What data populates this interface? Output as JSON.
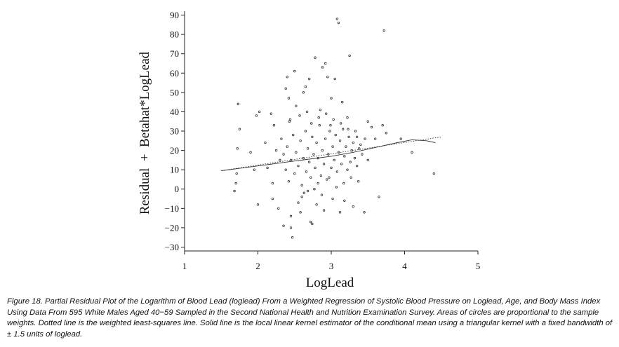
{
  "chart_data": {
    "type": "scatter",
    "xlabel": "LogLead",
    "ylabel": "Residual  +  Betahat*LogLead",
    "xlim": [
      1,
      5
    ],
    "ylim": [
      -32,
      92
    ],
    "xticks": [
      "1",
      "2",
      "3",
      "4",
      "5"
    ],
    "yticks": [
      "−30",
      "−20",
      "−10",
      "0",
      "10",
      "20",
      "30",
      "40",
      "50",
      "60",
      "70",
      "80",
      "90"
    ],
    "series": [
      {
        "kind": "points",
        "marker": "open-circle",
        "points": [
          [
            1.73,
            44
          ],
          [
            1.75,
            31
          ],
          [
            1.72,
            21
          ],
          [
            1.71,
            8
          ],
          [
            1.7,
            3
          ],
          [
            1.68,
            -1
          ],
          [
            1.9,
            19
          ],
          [
            1.98,
            38
          ],
          [
            2.02,
            40
          ],
          [
            1.95,
            10
          ],
          [
            2.0,
            -8
          ],
          [
            2.1,
            24
          ],
          [
            2.13,
            11
          ],
          [
            2.18,
            39
          ],
          [
            2.22,
            33
          ],
          [
            2.25,
            20
          ],
          [
            2.2,
            3
          ],
          [
            2.2,
            -5
          ],
          [
            2.28,
            -10
          ],
          [
            2.3,
            15
          ],
          [
            2.32,
            26
          ],
          [
            2.35,
            -19
          ],
          [
            2.38,
            52
          ],
          [
            2.4,
            58
          ],
          [
            2.42,
            47
          ],
          [
            2.44,
            36
          ],
          [
            2.45,
            -14
          ],
          [
            2.45,
            -20
          ],
          [
            2.47,
            -25
          ],
          [
            2.5,
            61
          ],
          [
            2.52,
            43
          ],
          [
            2.55,
            -7
          ],
          [
            2.58,
            -12
          ],
          [
            2.6,
            -4
          ],
          [
            2.62,
            50
          ],
          [
            2.65,
            53
          ],
          [
            2.68,
            -1
          ],
          [
            2.7,
            57
          ],
          [
            2.72,
            -17
          ],
          [
            2.74,
            -18
          ],
          [
            2.78,
            68
          ],
          [
            2.8,
            -8
          ],
          [
            2.82,
            3
          ],
          [
            2.85,
            41
          ],
          [
            2.88,
            63
          ],
          [
            2.9,
            -11
          ],
          [
            2.92,
            65
          ],
          [
            2.95,
            58
          ],
          [
            2.97,
            6
          ],
          [
            3.0,
            47
          ],
          [
            3.02,
            -5
          ],
          [
            3.05,
            57
          ],
          [
            3.08,
            88
          ],
          [
            3.1,
            86
          ],
          [
            3.12,
            -12
          ],
          [
            3.15,
            45
          ],
          [
            3.18,
            -6
          ],
          [
            3.22,
            37
          ],
          [
            3.25,
            69
          ],
          [
            3.3,
            -9
          ],
          [
            3.35,
            27
          ],
          [
            3.4,
            23
          ],
          [
            3.45,
            -12
          ],
          [
            3.5,
            35
          ],
          [
            3.55,
            32
          ],
          [
            3.6,
            26
          ],
          [
            3.65,
            -4
          ],
          [
            3.7,
            33
          ],
          [
            3.72,
            82
          ],
          [
            3.75,
            29
          ],
          [
            4.1,
            19
          ],
          [
            4.4,
            8
          ],
          [
            3.95,
            26
          ],
          [
            2.35,
            18
          ],
          [
            2.38,
            10
          ],
          [
            2.4,
            22
          ],
          [
            2.42,
            4
          ],
          [
            2.45,
            15
          ],
          [
            2.48,
            28
          ],
          [
            2.5,
            8
          ],
          [
            2.52,
            19
          ],
          [
            2.55,
            12
          ],
          [
            2.58,
            25
          ],
          [
            2.6,
            2
          ],
          [
            2.62,
            16
          ],
          [
            2.65,
            30
          ],
          [
            2.66,
            9
          ],
          [
            2.68,
            21
          ],
          [
            2.7,
            14
          ],
          [
            2.72,
            6
          ],
          [
            2.74,
            27
          ],
          [
            2.76,
            18
          ],
          [
            2.78,
            11
          ],
          [
            2.8,
            24
          ],
          [
            2.82,
            16
          ],
          [
            2.84,
            33
          ],
          [
            2.86,
            7
          ],
          [
            2.88,
            20
          ],
          [
            2.9,
            13
          ],
          [
            2.92,
            26
          ],
          [
            2.94,
            5
          ],
          [
            2.96,
            18
          ],
          [
            2.98,
            30
          ],
          [
            3.0,
            11
          ],
          [
            3.02,
            22
          ],
          [
            3.04,
            15
          ],
          [
            3.06,
            28
          ],
          [
            3.08,
            9
          ],
          [
            3.1,
            19
          ],
          [
            3.12,
            25
          ],
          [
            3.14,
            13
          ],
          [
            3.16,
            31
          ],
          [
            3.18,
            17
          ],
          [
            3.2,
            22
          ],
          [
            3.22,
            10
          ],
          [
            3.24,
            27
          ],
          [
            3.26,
            14
          ],
          [
            3.28,
            20
          ],
          [
            3.3,
            24
          ],
          [
            3.32,
            16
          ],
          [
            3.35,
            12
          ],
          [
            3.38,
            21
          ],
          [
            3.42,
            18
          ],
          [
            3.46,
            26
          ],
          [
            3.5,
            15
          ],
          [
            2.43,
            35
          ],
          [
            2.57,
            38
          ],
          [
            2.63,
            -2
          ],
          [
            2.67,
            40
          ],
          [
            2.73,
            34
          ],
          [
            2.77,
            0
          ],
          [
            2.83,
            37
          ],
          [
            2.87,
            -3
          ],
          [
            2.93,
            39
          ],
          [
            2.99,
            33
          ],
          [
            3.03,
            36
          ],
          [
            3.07,
            1
          ],
          [
            3.13,
            34
          ],
          [
            3.17,
            3
          ],
          [
            3.23,
            31
          ],
          [
            3.27,
            6
          ],
          [
            3.33,
            30
          ],
          [
            3.37,
            4
          ]
        ]
      },
      {
        "kind": "line",
        "style": "solid",
        "name": "local linear kernel estimator",
        "x": [
          1.5,
          1.8,
          2.1,
          2.4,
          2.7,
          3.0,
          3.3,
          3.6,
          3.9,
          4.1,
          4.3,
          4.42
        ],
        "y": [
          9.5,
          11,
          12.5,
          14,
          15.5,
          17,
          19,
          21.5,
          24,
          25.5,
          25,
          24
        ]
      },
      {
        "kind": "line",
        "style": "dotted",
        "name": "weighted least-squares line",
        "x": [
          1.5,
          4.5
        ],
        "y": [
          9.5,
          27
        ]
      }
    ]
  },
  "caption": "Figure 18.  Partial Residual Plot of the Logarithm of Blood Lead (loglead) From a Weighted Regression of Systolic Blood Pressure on Loglead, Age, and Body Mass Index Using Data From 595 White Males Aged 40−59 Sampled in the Second National Health and Nutrition Examination Survey. Areas of circles are proportional to the sample weights. Dotted line is the weighted least-squares line. Solid line is the local linear kernel estimator of the conditional mean using a triangular kernel with a fixed bandwidth of ± 1.5 units of loglead."
}
